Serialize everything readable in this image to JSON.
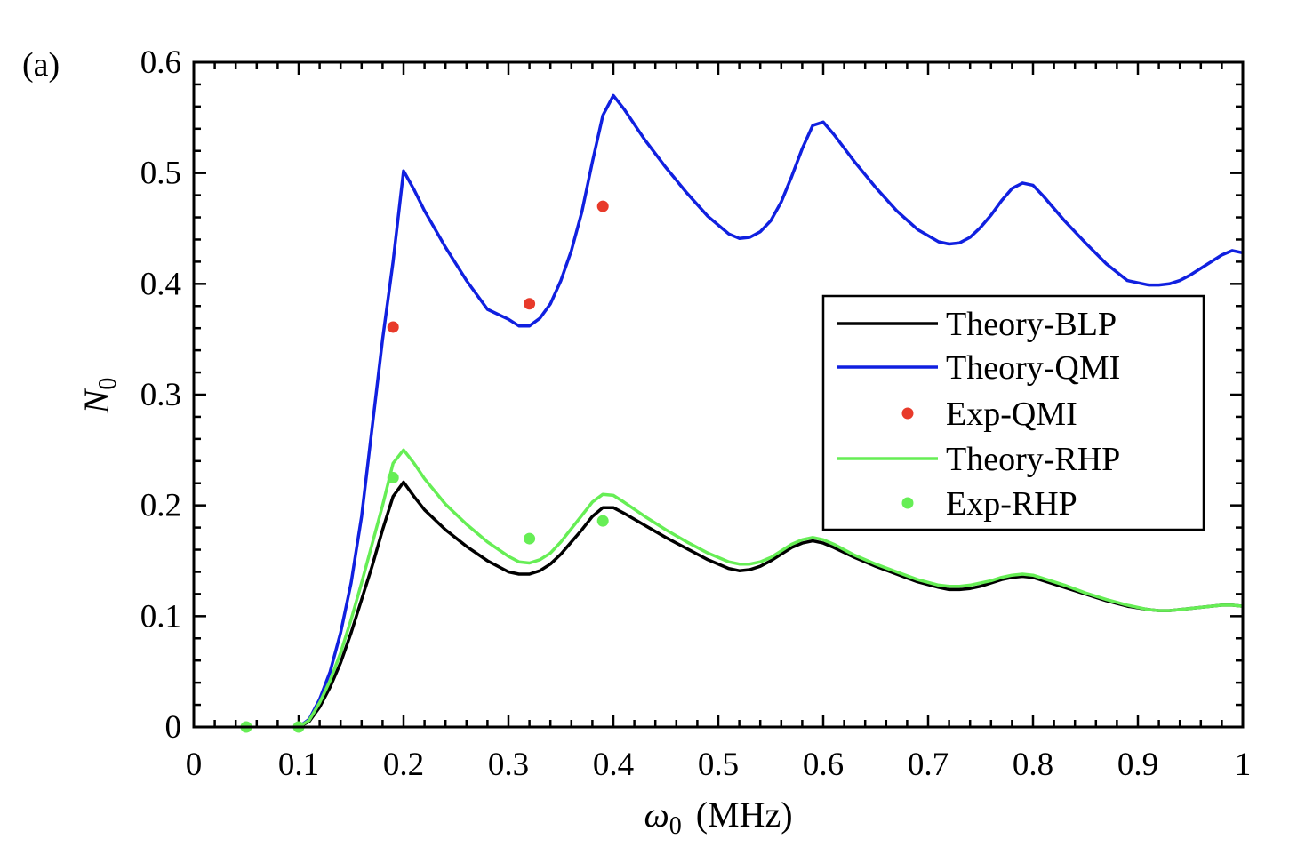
{
  "chart_data": {
    "type": "line",
    "panel_label": "(a)",
    "xlabel": {
      "symbol": "ω",
      "subscript": "0",
      "unit": "(MHz)"
    },
    "ylabel": {
      "symbol": "N",
      "subscript": "0"
    },
    "xlim": [
      0,
      1
    ],
    "ylim": [
      0,
      0.6
    ],
    "xticks": [
      "0",
      "0.1",
      "0.2",
      "0.3",
      "0.4",
      "0.5",
      "0.6",
      "0.7",
      "0.8",
      "0.9",
      "1"
    ],
    "yticks": [
      "0",
      "0.1",
      "0.2",
      "0.3",
      "0.4",
      "0.5",
      "0.6"
    ],
    "xtick_values": [
      0,
      0.1,
      0.2,
      0.3,
      0.4,
      0.5,
      0.6,
      0.7,
      0.8,
      0.9,
      1.0
    ],
    "ytick_values": [
      0,
      0.1,
      0.2,
      0.3,
      0.4,
      0.5,
      0.6
    ],
    "legend_position": "right",
    "series": [
      {
        "name": "Theory-BLP",
        "kind": "line",
        "color": "#000000",
        "x": [
          0.1,
          0.11,
          0.12,
          0.13,
          0.14,
          0.15,
          0.16,
          0.17,
          0.18,
          0.19,
          0.2,
          0.21,
          0.22,
          0.24,
          0.26,
          0.28,
          0.3,
          0.31,
          0.32,
          0.33,
          0.34,
          0.35,
          0.36,
          0.37,
          0.38,
          0.39,
          0.4,
          0.41,
          0.43,
          0.45,
          0.47,
          0.49,
          0.51,
          0.52,
          0.53,
          0.54,
          0.55,
          0.56,
          0.57,
          0.58,
          0.59,
          0.6,
          0.61,
          0.63,
          0.65,
          0.67,
          0.69,
          0.71,
          0.72,
          0.73,
          0.74,
          0.75,
          0.76,
          0.77,
          0.78,
          0.79,
          0.8,
          0.81,
          0.83,
          0.85,
          0.87,
          0.89,
          0.91,
          0.92,
          0.93,
          0.94,
          0.95,
          0.96,
          0.97,
          0.98,
          0.99,
          1.0
        ],
        "y": [
          0.0,
          0.005,
          0.018,
          0.036,
          0.058,
          0.085,
          0.115,
          0.145,
          0.178,
          0.208,
          0.221,
          0.208,
          0.196,
          0.178,
          0.163,
          0.15,
          0.14,
          0.138,
          0.138,
          0.141,
          0.147,
          0.156,
          0.167,
          0.178,
          0.19,
          0.198,
          0.198,
          0.193,
          0.182,
          0.171,
          0.161,
          0.151,
          0.143,
          0.141,
          0.142,
          0.145,
          0.15,
          0.156,
          0.162,
          0.166,
          0.168,
          0.166,
          0.162,
          0.153,
          0.145,
          0.138,
          0.131,
          0.126,
          0.124,
          0.124,
          0.125,
          0.127,
          0.13,
          0.133,
          0.135,
          0.136,
          0.135,
          0.132,
          0.126,
          0.12,
          0.114,
          0.109,
          0.106,
          0.105,
          0.105,
          0.106,
          0.107,
          0.108,
          0.109,
          0.11,
          0.11,
          0.109
        ]
      },
      {
        "name": "Theory-QMI",
        "kind": "line",
        "color": "#1020e0",
        "x": [
          0.1,
          0.11,
          0.12,
          0.13,
          0.14,
          0.15,
          0.16,
          0.17,
          0.18,
          0.19,
          0.2,
          0.21,
          0.22,
          0.24,
          0.26,
          0.28,
          0.3,
          0.31,
          0.32,
          0.33,
          0.34,
          0.35,
          0.36,
          0.37,
          0.38,
          0.39,
          0.4,
          0.41,
          0.43,
          0.45,
          0.47,
          0.49,
          0.51,
          0.52,
          0.53,
          0.54,
          0.55,
          0.56,
          0.57,
          0.58,
          0.59,
          0.6,
          0.61,
          0.63,
          0.65,
          0.67,
          0.69,
          0.71,
          0.72,
          0.73,
          0.74,
          0.75,
          0.76,
          0.77,
          0.78,
          0.79,
          0.8,
          0.81,
          0.83,
          0.85,
          0.87,
          0.89,
          0.91,
          0.92,
          0.93,
          0.94,
          0.95,
          0.96,
          0.97,
          0.98,
          0.99,
          1.0
        ],
        "y": [
          0.0,
          0.007,
          0.025,
          0.05,
          0.085,
          0.13,
          0.19,
          0.27,
          0.35,
          0.42,
          0.502,
          0.485,
          0.466,
          0.433,
          0.403,
          0.377,
          0.368,
          0.362,
          0.362,
          0.369,
          0.382,
          0.403,
          0.43,
          0.465,
          0.51,
          0.552,
          0.57,
          0.558,
          0.53,
          0.505,
          0.482,
          0.461,
          0.445,
          0.441,
          0.442,
          0.447,
          0.457,
          0.474,
          0.497,
          0.522,
          0.543,
          0.546,
          0.535,
          0.51,
          0.487,
          0.466,
          0.449,
          0.438,
          0.436,
          0.437,
          0.442,
          0.451,
          0.462,
          0.475,
          0.486,
          0.491,
          0.489,
          0.479,
          0.457,
          0.437,
          0.418,
          0.403,
          0.399,
          0.399,
          0.4,
          0.403,
          0.408,
          0.414,
          0.42,
          0.426,
          0.43,
          0.428
        ]
      },
      {
        "name": "Exp-QMI",
        "kind": "scatter",
        "color": "#e83a2a",
        "x": [
          0.19,
          0.32,
          0.39
        ],
        "y": [
          0.361,
          0.382,
          0.47
        ]
      },
      {
        "name": "Theory-RHP",
        "kind": "line",
        "color": "#66ee55",
        "x": [
          0.1,
          0.11,
          0.12,
          0.13,
          0.14,
          0.15,
          0.16,
          0.17,
          0.18,
          0.19,
          0.2,
          0.21,
          0.22,
          0.24,
          0.26,
          0.28,
          0.3,
          0.31,
          0.32,
          0.33,
          0.34,
          0.35,
          0.36,
          0.37,
          0.38,
          0.39,
          0.4,
          0.41,
          0.43,
          0.45,
          0.47,
          0.49,
          0.51,
          0.52,
          0.53,
          0.54,
          0.55,
          0.56,
          0.57,
          0.58,
          0.59,
          0.6,
          0.61,
          0.63,
          0.65,
          0.67,
          0.69,
          0.71,
          0.72,
          0.73,
          0.74,
          0.75,
          0.76,
          0.77,
          0.78,
          0.79,
          0.8,
          0.81,
          0.83,
          0.85,
          0.87,
          0.89,
          0.91,
          0.92,
          0.93,
          0.94,
          0.95,
          0.96,
          0.97,
          0.98,
          0.99,
          1.0
        ],
        "y": [
          0.0,
          0.006,
          0.022,
          0.042,
          0.067,
          0.097,
          0.13,
          0.165,
          0.2,
          0.238,
          0.25,
          0.238,
          0.224,
          0.201,
          0.183,
          0.167,
          0.154,
          0.149,
          0.148,
          0.151,
          0.157,
          0.167,
          0.179,
          0.191,
          0.203,
          0.21,
          0.209,
          0.203,
          0.19,
          0.178,
          0.167,
          0.157,
          0.149,
          0.147,
          0.147,
          0.149,
          0.153,
          0.159,
          0.165,
          0.169,
          0.171,
          0.169,
          0.165,
          0.155,
          0.147,
          0.14,
          0.133,
          0.128,
          0.127,
          0.127,
          0.128,
          0.13,
          0.132,
          0.135,
          0.137,
          0.138,
          0.137,
          0.134,
          0.128,
          0.121,
          0.115,
          0.11,
          0.106,
          0.105,
          0.105,
          0.106,
          0.107,
          0.108,
          0.109,
          0.11,
          0.11,
          0.109
        ]
      },
      {
        "name": "Exp-RHP",
        "kind": "scatter",
        "color": "#66ee55",
        "x": [
          0.05,
          0.1,
          0.19,
          0.32,
          0.39
        ],
        "y": [
          0.0,
          0.0,
          0.225,
          0.17,
          0.186
        ]
      }
    ]
  }
}
